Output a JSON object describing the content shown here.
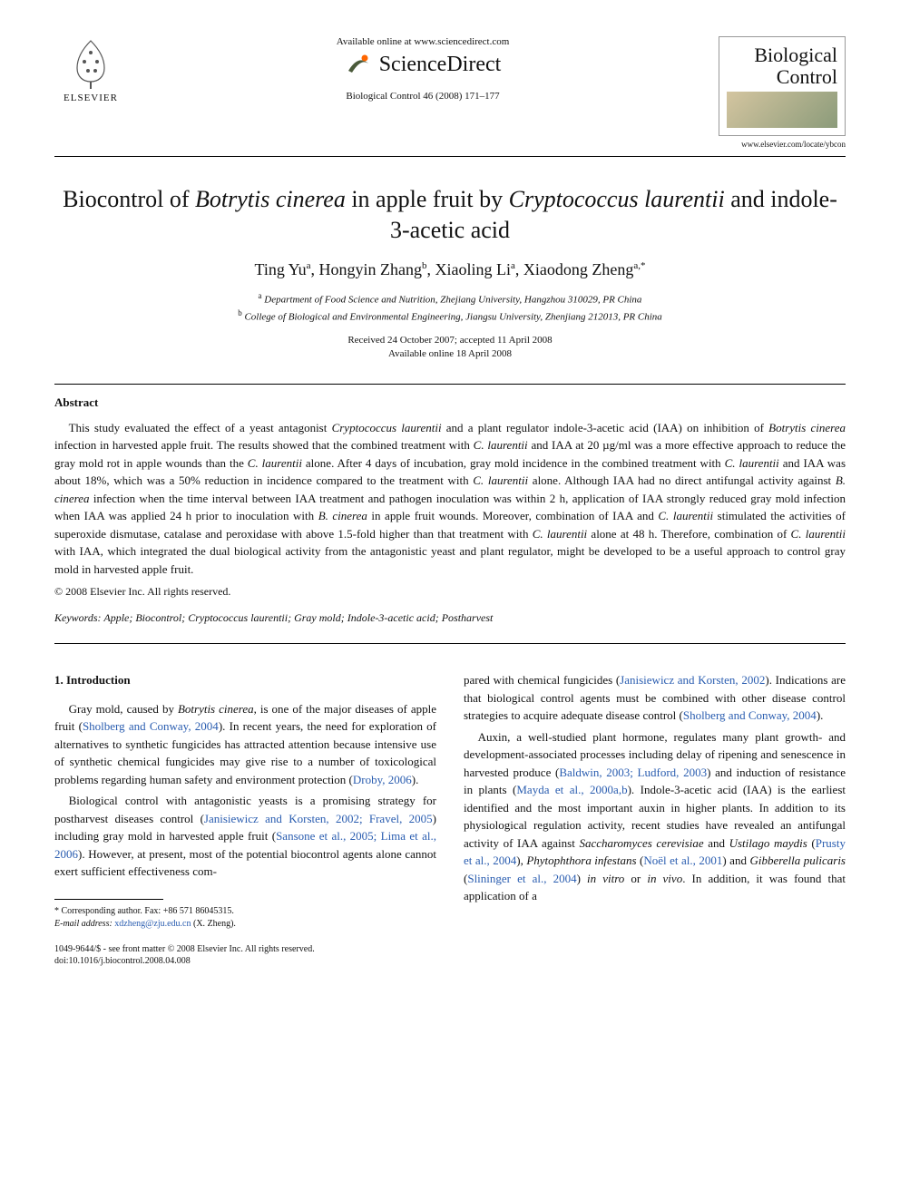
{
  "header": {
    "publisher_label": "ELSEVIER",
    "available_online": "Available online at www.sciencedirect.com",
    "sciencedirect": "ScienceDirect",
    "citation": "Biological Control 46 (2008) 171–177",
    "journal_title_line1": "Biological",
    "journal_title_line2": "Control",
    "journal_url": "www.elsevier.com/locate/ybcon"
  },
  "title": {
    "pre": "Biocontrol of ",
    "ital1": "Botrytis cinerea",
    "mid": " in apple fruit by ",
    "ital2": "Cryptococcus laurentii",
    "post": " and indole-3-acetic acid"
  },
  "authors": {
    "a1": "Ting Yu",
    "a1_aff": "a",
    "a2": "Hongyin Zhang",
    "a2_aff": "b",
    "a3": "Xiaoling Li",
    "a3_aff": "a",
    "a4": "Xiaodong Zheng",
    "a4_aff": "a,*"
  },
  "affiliations": {
    "a": "Department of Food Science and Nutrition, Zhejiang University, Hangzhou 310029, PR China",
    "b": "College of Biological and Environmental Engineering, Jiangsu University, Zhenjiang 212013, PR China"
  },
  "dates": {
    "received": "Received 24 October 2007; accepted 11 April 2008",
    "online": "Available online 18 April 2008"
  },
  "abstract": {
    "heading": "Abstract",
    "body_parts": [
      {
        "t": "This study evaluated the effect of a yeast antagonist "
      },
      {
        "t": "Cryptococcus laurentii",
        "i": true
      },
      {
        "t": " and a plant regulator indole-3-acetic acid (IAA) on inhibition of "
      },
      {
        "t": "Botrytis cinerea",
        "i": true
      },
      {
        "t": " infection in harvested apple fruit. The results showed that the combined treatment with "
      },
      {
        "t": "C. laurentii",
        "i": true
      },
      {
        "t": " and IAA at 20 µg/ml was a more effective approach to reduce the gray mold rot in apple wounds than the "
      },
      {
        "t": "C. laurentii",
        "i": true
      },
      {
        "t": " alone. After 4 days of incubation, gray mold incidence in the combined treatment with "
      },
      {
        "t": "C. laurentii",
        "i": true
      },
      {
        "t": " and IAA was about 18%, which was a 50% reduction in incidence compared to the treatment with "
      },
      {
        "t": "C. laurentii",
        "i": true
      },
      {
        "t": " alone. Although IAA had no direct antifungal activity against "
      },
      {
        "t": "B. cinerea",
        "i": true
      },
      {
        "t": " infection when the time interval between IAA treatment and pathogen inoculation was within 2 h, application of IAA strongly reduced gray mold infection when IAA was applied 24 h prior to inoculation with "
      },
      {
        "t": "B. cinerea",
        "i": true
      },
      {
        "t": " in apple fruit wounds. Moreover, combination of IAA and "
      },
      {
        "t": "C. laurentii",
        "i": true
      },
      {
        "t": " stimulated the activities of superoxide dismutase, catalase and peroxidase with above 1.5-fold higher than that treatment with "
      },
      {
        "t": "C. laurentii",
        "i": true
      },
      {
        "t": " alone at 48 h. Therefore, combination of "
      },
      {
        "t": "C. laurentii",
        "i": true
      },
      {
        "t": " with IAA, which integrated the dual biological activity from the antagonistic yeast and plant regulator, might be developed to be a useful approach to control gray mold in harvested apple fruit."
      }
    ],
    "copyright": "© 2008 Elsevier Inc. All rights reserved."
  },
  "keywords": {
    "label": "Keywords:",
    "list": "Apple; Biocontrol; Cryptococcus laurentii; Gray mold; Indole-3-acetic acid; Postharvest"
  },
  "intro": {
    "heading": "1. Introduction",
    "col1": {
      "p1_parts": [
        {
          "t": "Gray mold, caused by "
        },
        {
          "t": "Botrytis cinerea",
          "i": true
        },
        {
          "t": ", is one of the major diseases of apple fruit ("
        },
        {
          "t": "Sholberg and Conway, 2004",
          "c": true
        },
        {
          "t": "). In recent years, the need for exploration of alternatives to synthetic fungicides has attracted attention because intensive use of synthetic chemical fungicides may give rise to a number of toxicological problems regarding human safety and environment protection ("
        },
        {
          "t": "Droby, 2006",
          "c": true
        },
        {
          "t": ")."
        }
      ],
      "p2_parts": [
        {
          "t": "Biological control with antagonistic yeasts is a promising strategy for postharvest diseases control ("
        },
        {
          "t": "Janisiewicz and Korsten, 2002; Fravel, 2005",
          "c": true
        },
        {
          "t": ") including gray mold in harvested apple fruit ("
        },
        {
          "t": "Sansone et al., 2005; Lima et al., 2006",
          "c": true
        },
        {
          "t": "). However, at present, most of the potential biocontrol agents alone cannot exert sufficient effectiveness com-"
        }
      ]
    },
    "col2": {
      "p1_parts": [
        {
          "t": "pared with chemical fungicides ("
        },
        {
          "t": "Janisiewicz and Korsten, 2002",
          "c": true
        },
        {
          "t": "). Indications are that biological control agents must be combined with other disease control strategies to acquire adequate disease control ("
        },
        {
          "t": "Sholberg and Conway, 2004",
          "c": true
        },
        {
          "t": ")."
        }
      ],
      "p2_parts": [
        {
          "t": "Auxin, a well-studied plant hormone, regulates many plant growth- and development-associated processes including delay of ripening and senescence in harvested produce ("
        },
        {
          "t": "Baldwin, 2003; Ludford, 2003",
          "c": true
        },
        {
          "t": ") and induction of resistance in plants ("
        },
        {
          "t": "Mayda et al., 2000a,b",
          "c": true
        },
        {
          "t": "). Indole-3-acetic acid (IAA) is the earliest identified and the most important auxin in higher plants. In addition to its physiological regulation activity, recent studies have revealed an antifungal activity of IAA against "
        },
        {
          "t": "Saccharomyces cerevisiae",
          "i": true
        },
        {
          "t": " and "
        },
        {
          "t": "Ustilago maydis",
          "i": true
        },
        {
          "t": " ("
        },
        {
          "t": "Prusty et al., 2004",
          "c": true
        },
        {
          "t": "), "
        },
        {
          "t": "Phytophthora infestans",
          "i": true
        },
        {
          "t": " ("
        },
        {
          "t": "Noël et al., 2001",
          "c": true
        },
        {
          "t": ") and "
        },
        {
          "t": "Gibberella pulicaris",
          "i": true
        },
        {
          "t": " ("
        },
        {
          "t": "Slininger et al., 2004",
          "c": true
        },
        {
          "t": ") "
        },
        {
          "t": "in vitro",
          "i": true
        },
        {
          "t": " or "
        },
        {
          "t": "in vivo",
          "i": true
        },
        {
          "t": ". In addition, it was found that application of a"
        }
      ]
    }
  },
  "footer": {
    "corresponding": "* Corresponding author. Fax: +86 571 86045315.",
    "email_label": "E-mail address:",
    "email": "xdzheng@zju.edu.cn",
    "email_who": "(X. Zheng).",
    "issn": "1049-9644/$ - see front matter © 2008 Elsevier Inc. All rights reserved.",
    "doi": "doi:10.1016/j.biocontrol.2008.04.008"
  },
  "colors": {
    "text": "#111111",
    "link": "#2a5db0",
    "border": "#000000",
    "elsevier_orange": "#ff6600"
  },
  "typography": {
    "title_fontsize": 26,
    "authors_fontsize": 18,
    "body_fontsize": 13,
    "small_fontsize": 11,
    "footer_fontsize": 10
  }
}
